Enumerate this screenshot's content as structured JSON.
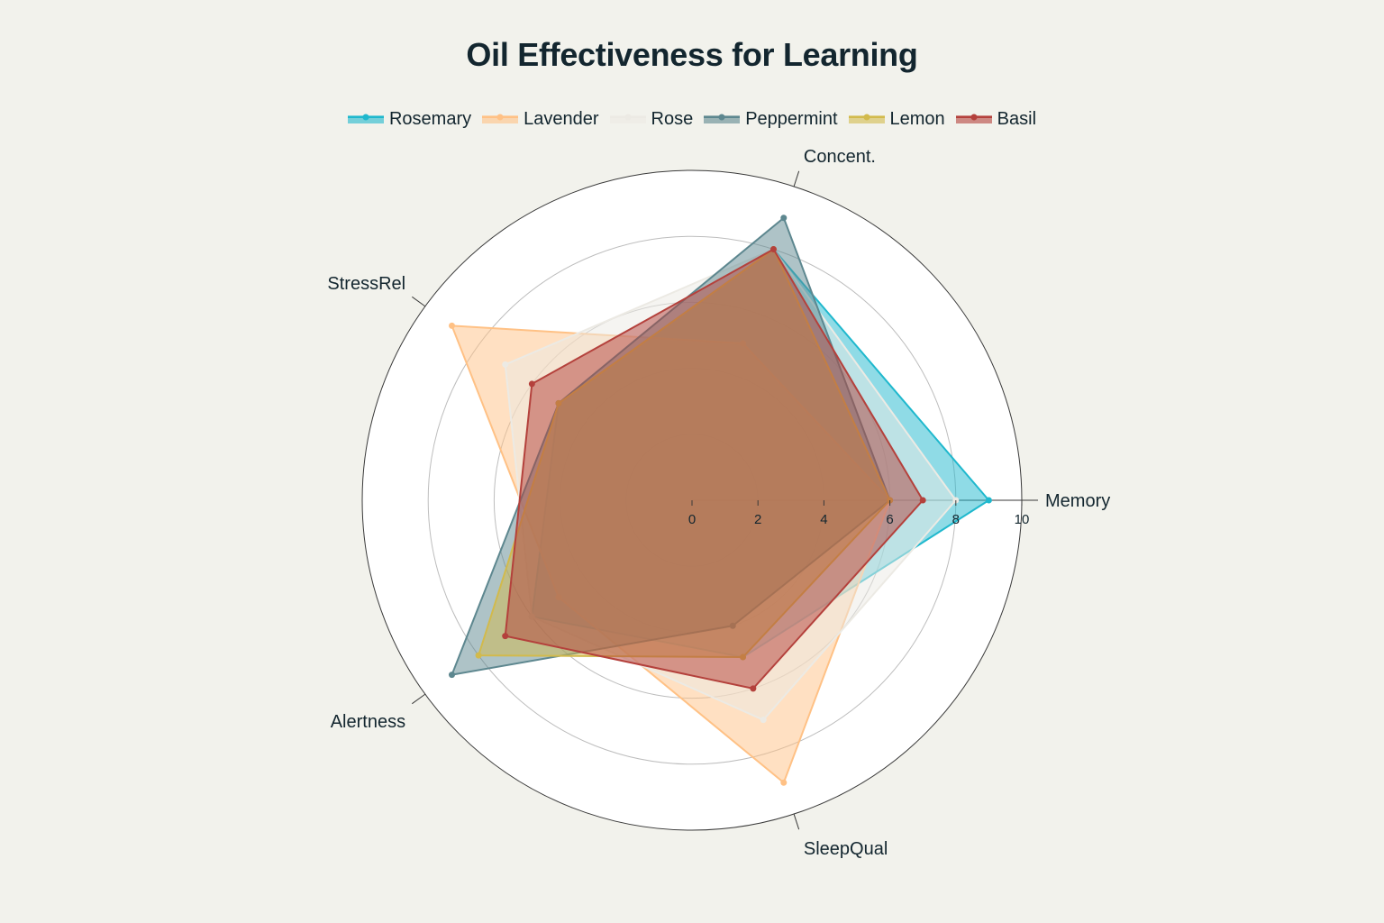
{
  "chart_data": {
    "type": "radar",
    "title": "Oil Effectiveness for Learning",
    "axes": [
      "Memory",
      "Concent.",
      "StressRel",
      "Alertness",
      "SleepQual"
    ],
    "radial_range": [
      0,
      10
    ],
    "radial_ticks": [
      "0",
      "2",
      "4",
      "6",
      "8",
      "10"
    ],
    "legend_position": "top",
    "series": [
      {
        "name": "Rosemary",
        "color": "#1fb8cd",
        "values": [
          9,
          8,
          5,
          6,
          5
        ]
      },
      {
        "name": "Lavender",
        "color": "#ffc185",
        "values": [
          6,
          5,
          9,
          5,
          9
        ]
      },
      {
        "name": "Rose",
        "color": "#eceae4",
        "values": [
          8,
          8,
          7,
          6,
          7
        ]
      },
      {
        "name": "Peppermint",
        "color": "#5d878f",
        "values": [
          6,
          9,
          5,
          9,
          4
        ]
      },
      {
        "name": "Lemon",
        "color": "#d2ba4c",
        "values": [
          6,
          8,
          5,
          8,
          5
        ]
      },
      {
        "name": "Basil",
        "color": "#b4413c",
        "values": [
          7,
          8,
          6,
          7,
          6
        ]
      }
    ]
  }
}
